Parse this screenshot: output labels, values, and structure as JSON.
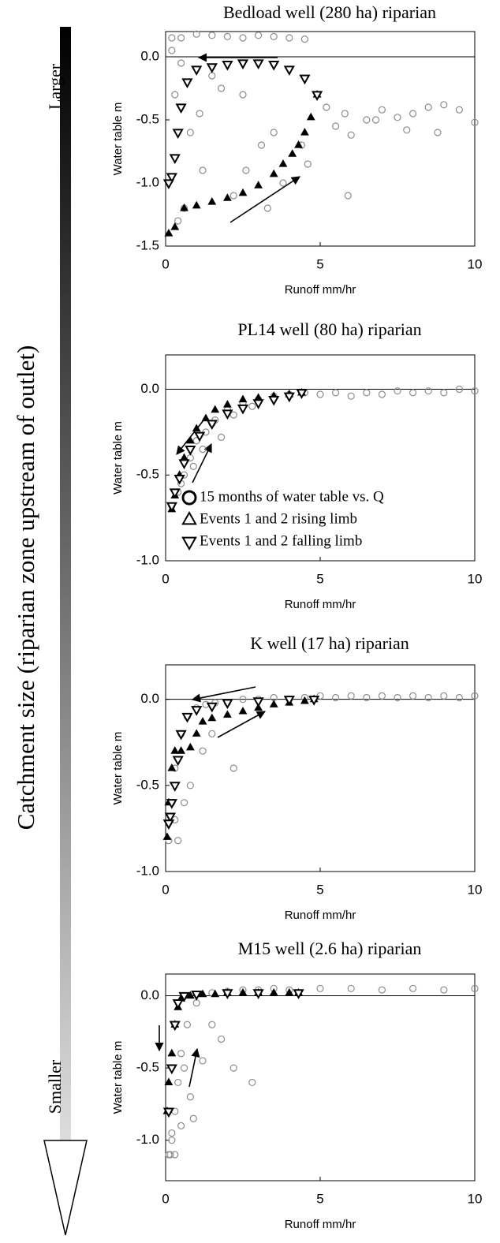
{
  "catchment_arrow": {
    "label": "Catchment size (riparian zone upstream of outlet)",
    "top_label": "Larger",
    "bottom_label": "Smaller"
  },
  "chart_data": [
    {
      "type": "scatter",
      "title": "Bedload well (280 ha) riparian",
      "x_label": "Runoff mm/hr",
      "y_label": "Water table m",
      "xlim": [
        0,
        10
      ],
      "ylim": [
        -1.5,
        0.2
      ],
      "xticks": [
        0,
        5,
        10
      ],
      "yticks": [
        {
          "value": 0,
          "label": "0.0"
        },
        {
          "value": -0.5,
          "label": "-0.5"
        },
        {
          "value": -1,
          "label": "-1.0"
        },
        {
          "value": -1.5,
          "label": "-1.5"
        }
      ],
      "zero_line": true,
      "series": [
        {
          "marker": "circle",
          "color": "#8c8c8c",
          "x": [
            0.2,
            0.5,
            1,
            1.5,
            2,
            2.5,
            3,
            3.5,
            4,
            4.5,
            0.3,
            0.8,
            1.2,
            2.2,
            3.3,
            4.4,
            5.2,
            5.8,
            6.5,
            7,
            7.5,
            8,
            8.5,
            9,
            9.5,
            10,
            5.5,
            6,
            6.8,
            7.8,
            8.8,
            0.4,
            0.6,
            1.1,
            1.8,
            2.6,
            3.1,
            3.8,
            4.6,
            5.9,
            0.2,
            0.5,
            1.5,
            2.5,
            3.5
          ],
          "values": [
            0.15,
            0.15,
            0.18,
            0.17,
            0.16,
            0.15,
            0.17,
            0.16,
            0.15,
            0.14,
            -0.3,
            -0.6,
            -0.9,
            -1.1,
            -1.2,
            -0.7,
            -0.4,
            -0.45,
            -0.5,
            -0.42,
            -0.48,
            -0.45,
            -0.4,
            -0.38,
            -0.42,
            -0.52,
            -0.55,
            -0.62,
            -0.5,
            -0.58,
            -0.6,
            -1.3,
            -1.2,
            -0.45,
            -0.25,
            -0.9,
            -0.7,
            -1.0,
            -0.85,
            -1.1,
            0.05,
            -0.05,
            -0.15,
            -0.3,
            -0.6
          ]
        },
        {
          "marker": "triangle-up",
          "color": "#000000",
          "x": [
            0.1,
            0.3,
            0.6,
            1,
            1.5,
            2,
            2.5,
            3,
            3.5,
            3.8,
            4.1,
            4.3,
            4.5,
            4.7,
            4.9
          ],
          "values": [
            -1.4,
            -1.35,
            -1.2,
            -1.18,
            -1.15,
            -1.12,
            -1.08,
            -1.02,
            -0.93,
            -0.85,
            -0.77,
            -0.7,
            -0.6,
            -0.48,
            -0.3
          ]
        },
        {
          "marker": "triangle-down",
          "color": "#000000",
          "x": [
            4.9,
            4.5,
            4,
            3.5,
            3,
            2.5,
            2,
            1.5,
            1,
            0.7,
            0.5,
            0.4,
            0.3,
            0.2,
            0.1
          ],
          "values": [
            -0.3,
            -0.17,
            -0.1,
            -0.06,
            -0.05,
            -0.05,
            -0.06,
            -0.08,
            -0.1,
            -0.2,
            -0.4,
            -0.6,
            -0.8,
            -0.95,
            -1.0
          ]
        }
      ]
    },
    {
      "type": "scatter",
      "title": "PL14 well (80 ha) riparian",
      "x_label": "Runoff mm/hr",
      "y_label": "Water table m",
      "xlim": [
        0,
        10
      ],
      "ylim": [
        -1,
        0.2
      ],
      "xticks": [
        0,
        5,
        10
      ],
      "yticks": [
        {
          "value": 0,
          "label": "0.0"
        },
        {
          "value": -0.5,
          "label": "-0.5"
        },
        {
          "value": -1,
          "label": "-1.0"
        }
      ],
      "zero_line": true,
      "legend": "lower-right",
      "series": [
        {
          "name": "15 months of water table vs. Q",
          "marker": "circle",
          "color": "#8c8c8c",
          "x": [
            0.2,
            0.4,
            0.6,
            0.8,
            1,
            1.3,
            1.6,
            2,
            2.5,
            3,
            3.5,
            4,
            4.5,
            5,
            5.5,
            6,
            6.5,
            7,
            7.5,
            8,
            8.5,
            9,
            9.5,
            10,
            1.2,
            1.8,
            2.2,
            0.5,
            0.9,
            1.5,
            2.8
          ],
          "values": [
            -0.68,
            -0.6,
            -0.5,
            -0.4,
            -0.3,
            -0.25,
            -0.18,
            -0.12,
            -0.08,
            -0.06,
            -0.04,
            -0.03,
            -0.02,
            -0.03,
            -0.02,
            -0.04,
            -0.02,
            -0.03,
            -0.01,
            -0.02,
            -0.01,
            -0.02,
            0,
            -0.01,
            -0.35,
            -0.28,
            -0.15,
            -0.55,
            -0.45,
            -0.2,
            -0.1
          ]
        },
        {
          "name": "Events 1 and 2 rising limb",
          "marker": "triangle-up",
          "color": "#000000",
          "x": [
            0.2,
            0.3,
            0.45,
            0.6,
            0.8,
            1,
            1.3,
            1.6,
            2,
            2.5,
            3,
            3.5,
            4,
            4.4
          ],
          "values": [
            -0.7,
            -0.62,
            -0.5,
            -0.4,
            -0.3,
            -0.23,
            -0.17,
            -0.12,
            -0.09,
            -0.06,
            -0.05,
            -0.04,
            -0.03,
            -0.02
          ]
        },
        {
          "name": "Events 1 and 2 falling limb",
          "marker": "triangle-down",
          "color": "#000000",
          "x": [
            4.4,
            4,
            3.5,
            3,
            2.5,
            2,
            1.5,
            1.1,
            0.8,
            0.6,
            0.45,
            0.3,
            0.2
          ],
          "values": [
            -0.02,
            -0.04,
            -0.06,
            -0.08,
            -0.11,
            -0.14,
            -0.2,
            -0.27,
            -0.35,
            -0.43,
            -0.52,
            -0.6,
            -0.68
          ]
        }
      ]
    },
    {
      "type": "scatter",
      "title": "K well (17 ha) riparian",
      "x_label": "Runoff mm/hr",
      "y_label": "Water table m",
      "xlim": [
        0,
        10
      ],
      "ylim": [
        -1,
        0.2
      ],
      "xticks": [
        0,
        5,
        10
      ],
      "yticks": [
        {
          "value": 0,
          "label": "0.0"
        },
        {
          "value": -0.5,
          "label": "-0.5"
        },
        {
          "value": -1,
          "label": "-1.0"
        }
      ],
      "zero_line": true,
      "series": [
        {
          "marker": "circle",
          "color": "#8c8c8c",
          "x": [
            0.1,
            0.2,
            0.3,
            0.5,
            0.7,
            1,
            1.3,
            1.6,
            2,
            2.5,
            3,
            3.5,
            4,
            4.5,
            5,
            5.5,
            6,
            6.5,
            7,
            7.5,
            8,
            8.5,
            9,
            9.5,
            10,
            0.4,
            0.8,
            1.2,
            1.5,
            2.2,
            0.3,
            0.6
          ],
          "values": [
            -0.82,
            -0.6,
            -0.4,
            -0.2,
            -0.1,
            -0.05,
            -0.03,
            -0.02,
            -0.02,
            0,
            0,
            0.01,
            0,
            0.01,
            0.02,
            0.01,
            0.02,
            0.01,
            0.02,
            0.01,
            0.02,
            0.01,
            0.02,
            0.01,
            0.02,
            -0.82,
            -0.5,
            -0.3,
            -0.2,
            -0.4,
            -0.7,
            -0.6
          ]
        },
        {
          "marker": "triangle-up",
          "color": "#000000",
          "x": [
            0.05,
            0.1,
            0.2,
            0.3,
            0.5,
            0.8,
            1,
            1.2,
            1.5,
            2,
            2.5,
            3,
            3.5,
            4,
            4.5,
            4.8
          ],
          "values": [
            -0.8,
            -0.6,
            -0.4,
            -0.3,
            -0.3,
            -0.28,
            -0.2,
            -0.13,
            -0.11,
            -0.09,
            -0.07,
            -0.05,
            -0.03,
            -0.02,
            -0.01,
            0
          ]
        },
        {
          "marker": "triangle-down",
          "color": "#000000",
          "x": [
            4.8,
            4,
            3,
            2,
            1.5,
            1,
            0.7,
            0.5,
            0.4,
            0.3,
            0.2,
            0.15,
            0.1,
            0.1
          ],
          "values": [
            0,
            0,
            -0.01,
            -0.02,
            -0.04,
            -0.06,
            -0.1,
            -0.2,
            -0.35,
            -0.5,
            -0.6,
            -0.68,
            -0.72,
            -0.72
          ]
        }
      ]
    },
    {
      "type": "scatter",
      "title": "M15 well (2.6 ha) riparian",
      "x_label": "Runoff mm/hr",
      "y_label": "Water table m",
      "xlim": [
        0,
        10
      ],
      "ylim": [
        -1.28,
        0.15
      ],
      "xticks": [
        0,
        5,
        10
      ],
      "yticks": [
        {
          "value": 0,
          "label": "0.0"
        },
        {
          "value": -0.5,
          "label": "-0.5"
        },
        {
          "value": -1,
          "label": "-1.0"
        }
      ],
      "zero_line": true,
      "series": [
        {
          "marker": "circle",
          "color": "#8c8c8c",
          "x": [
            0.1,
            0.2,
            0.3,
            0.4,
            0.5,
            0.7,
            1,
            1.5,
            2,
            2.5,
            3,
            3.5,
            4,
            5,
            6,
            7,
            8,
            9,
            10,
            0.6,
            0.8,
            1.2,
            1.8,
            2.2,
            2.8,
            0.3,
            0.5,
            0.2,
            0.15,
            1.5,
            0.9
          ],
          "values": [
            -1.1,
            -1.0,
            -0.8,
            -0.6,
            -0.4,
            -0.2,
            -0.05,
            0.02,
            0.03,
            0.04,
            0.04,
            0.05,
            0.04,
            0.05,
            0.05,
            0.04,
            0.05,
            0.04,
            0.05,
            -0.5,
            -0.7,
            -0.45,
            -0.3,
            -0.5,
            -0.6,
            -1.1,
            -0.9,
            -0.95,
            -1.1,
            -0.2,
            -0.85
          ]
        },
        {
          "marker": "triangle-up",
          "color": "#000000",
          "x": [
            0.05,
            0.1,
            0.2,
            0.3,
            0.4,
            0.5,
            0.8,
            1.2,
            1.6,
            2,
            2.5,
            3,
            3.5,
            4,
            4.3
          ],
          "values": [
            -0.8,
            -0.6,
            -0.4,
            -0.2,
            -0.08,
            -0.02,
            0,
            0.01,
            0.01,
            0.02,
            0.02,
            0.02,
            0.02,
            0.02,
            0.02
          ]
        },
        {
          "marker": "triangle-down",
          "color": "#000000",
          "x": [
            4.3,
            3,
            2,
            1,
            0.6,
            0.4,
            0.3,
            0.2,
            0.1
          ],
          "values": [
            0.02,
            0.02,
            0.02,
            0.01,
            0,
            -0.05,
            -0.2,
            -0.5,
            -0.8
          ]
        }
      ]
    }
  ]
}
